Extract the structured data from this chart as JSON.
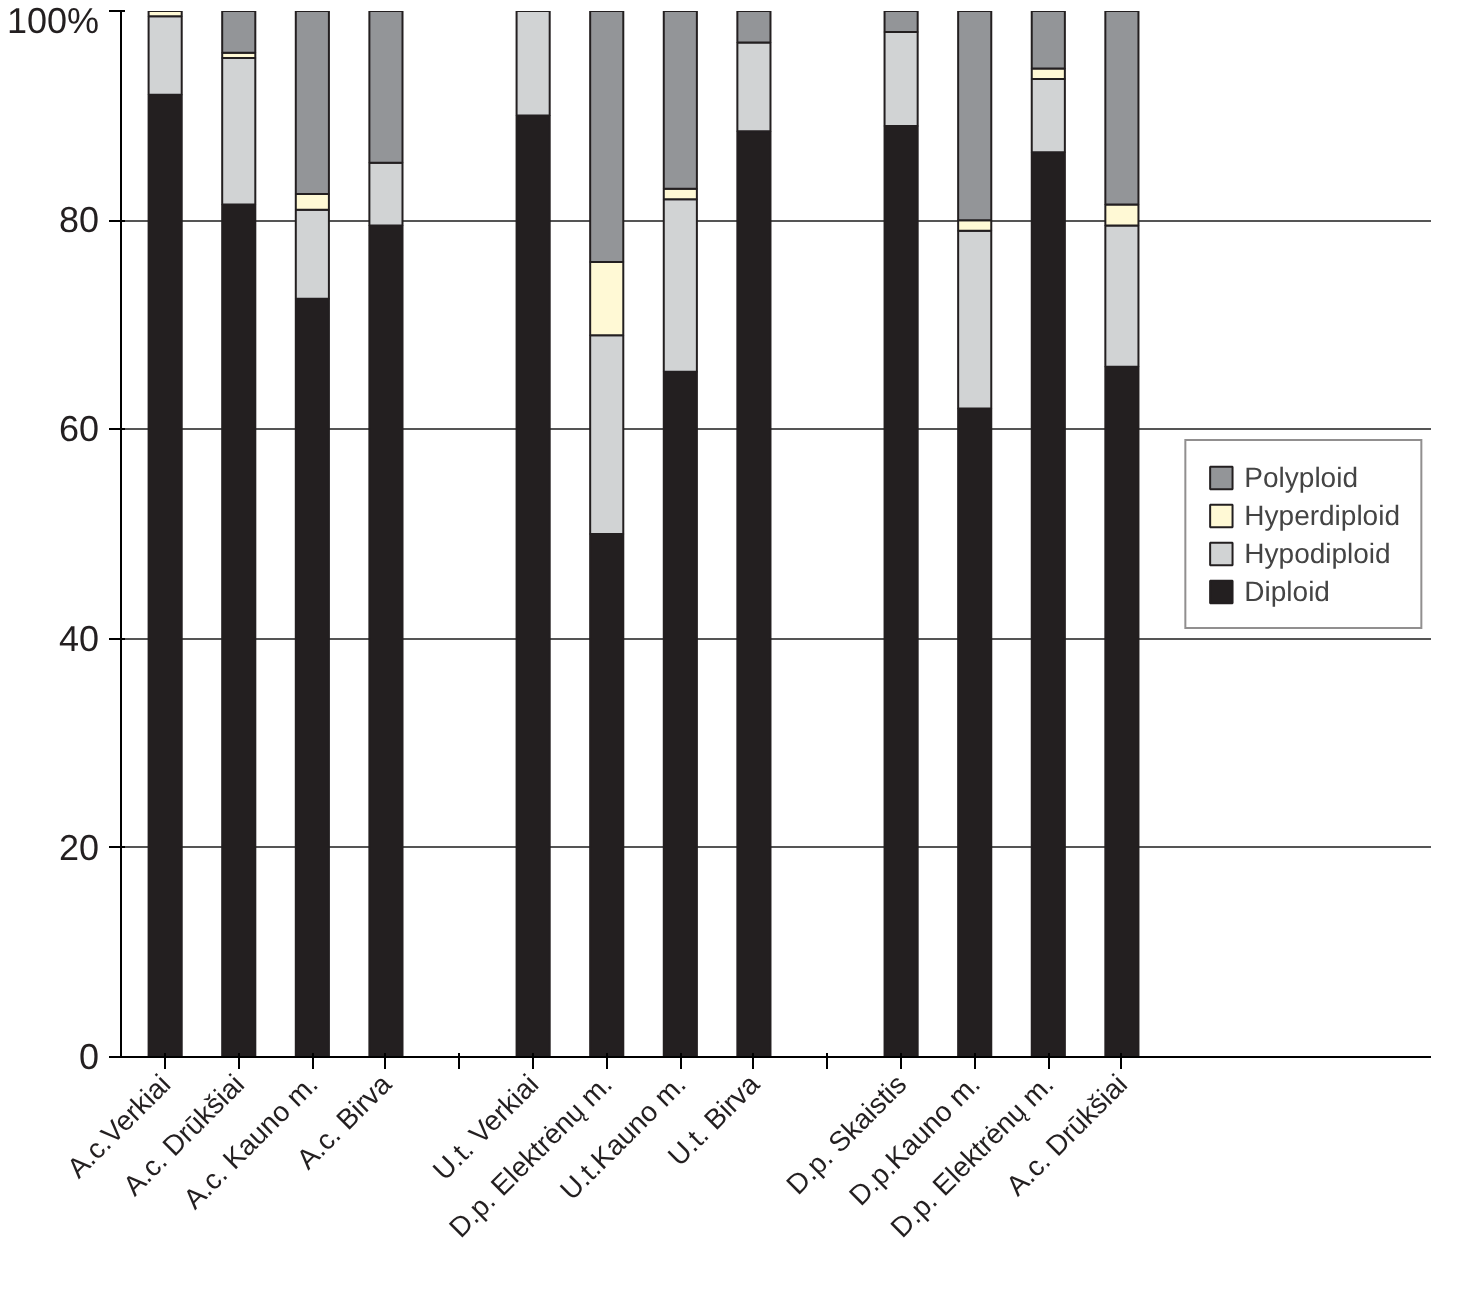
{
  "chart_data": {
    "type": "bar",
    "stacked": true,
    "categories": [
      "A.c.Verkiai",
      "A.c. Drūkšiai",
      "A.c. Kauno m.",
      "A.c. Birva",
      null,
      "U.t. Verkiai",
      "D.p. Elektrėnų m.",
      "U.t.Kauno m.",
      "U.t. Birva",
      null,
      "D.p. Skaistis",
      "D.p.Kauno m.",
      "D.p. Elektrėnų m.",
      "A.c. Drūkšiai"
    ],
    "series": [
      {
        "name": "Diploid",
        "color": "#231f20",
        "values": [
          92,
          81.5,
          72.5,
          79.5,
          null,
          90,
          50,
          65.5,
          88.5,
          null,
          89,
          62,
          86.5,
          66
        ]
      },
      {
        "name": "Hypodiploid",
        "color": "#d1d3d4",
        "values": [
          7.5,
          14,
          8.5,
          6,
          null,
          10,
          19,
          16.5,
          8.5,
          null,
          9,
          17,
          7,
          13.5
        ]
      },
      {
        "name": "Hyperdiploid",
        "color": "#fff9d5",
        "values": [
          0.5,
          0.5,
          1.5,
          0,
          null,
          0,
          7,
          1,
          0,
          null,
          0,
          1,
          1,
          2
        ]
      },
      {
        "name": "Polyploid",
        "color": "#939598",
        "values": [
          0,
          4,
          17.5,
          14.5,
          null,
          0,
          24,
          17,
          3,
          null,
          2,
          20,
          5.5,
          18.5
        ]
      }
    ],
    "ylim": [
      0,
      100
    ],
    "yticks": [
      0,
      20,
      40,
      60,
      80,
      {
        "value": 100,
        "label": "100%"
      }
    ],
    "grid": "y",
    "legend": "right"
  }
}
